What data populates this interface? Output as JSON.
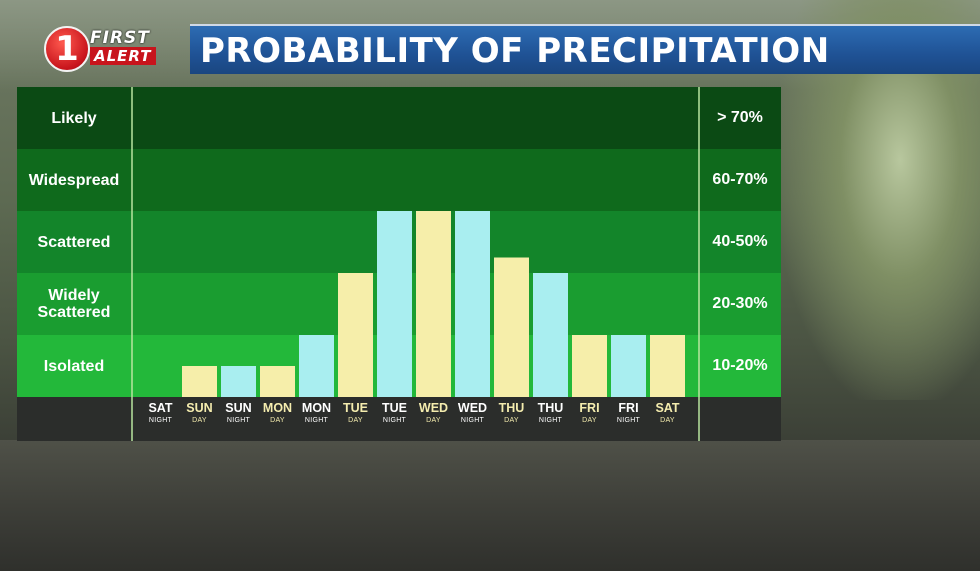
{
  "logo": {
    "number": "1",
    "line1": "FIRST",
    "line2": "ALERT"
  },
  "title": "PROBABILITY OF PRECIPITATION",
  "colors": {
    "day_bar": "#f6eeaa",
    "night_bar": "#a9eef0",
    "band_likely": "#0b4a14",
    "band_widespread": "#0f6a1c",
    "band_scattered": "#13852a",
    "band_widely_scattered": "#1a9d30",
    "band_isolated": "#23b83a"
  },
  "chart_data": {
    "type": "bar",
    "title": "PROBABILITY OF PRECIPITATION",
    "categories": [
      {
        "day": "SAT",
        "period": "NIGHT"
      },
      {
        "day": "SUN",
        "period": "DAY"
      },
      {
        "day": "SUN",
        "period": "NIGHT"
      },
      {
        "day": "MON",
        "period": "DAY"
      },
      {
        "day": "MON",
        "period": "NIGHT"
      },
      {
        "day": "TUE",
        "period": "DAY"
      },
      {
        "day": "TUE",
        "period": "NIGHT"
      },
      {
        "day": "WED",
        "period": "DAY"
      },
      {
        "day": "WED",
        "period": "NIGHT"
      },
      {
        "day": "THU",
        "period": "DAY"
      },
      {
        "day": "THU",
        "period": "NIGHT"
      },
      {
        "day": "FRI",
        "period": "DAY"
      },
      {
        "day": "FRI",
        "period": "NIGHT"
      },
      {
        "day": "SAT",
        "period": "DAY"
      }
    ],
    "values": [
      0,
      0.5,
      0.5,
      0.5,
      1,
      2,
      3,
      3,
      3,
      2.25,
      2,
      1,
      1,
      1
    ],
    "value_scale": "band levels (1 = Isolated, 2 = Widely Scattered, 3 = Scattered, 4 = Widespread, 5 = Likely)",
    "ylim": [
      0,
      5
    ],
    "bands": [
      {
        "label": "Likely",
        "range": "> 70%"
      },
      {
        "label": "Widespread",
        "range": "60-70%"
      },
      {
        "label": "Scattered",
        "range": "40-50%"
      },
      {
        "label": "Widely Scattered",
        "range": "20-30%"
      },
      {
        "label": "Isolated",
        "range": "10-20%"
      }
    ],
    "grid": false,
    "legend": "none"
  }
}
